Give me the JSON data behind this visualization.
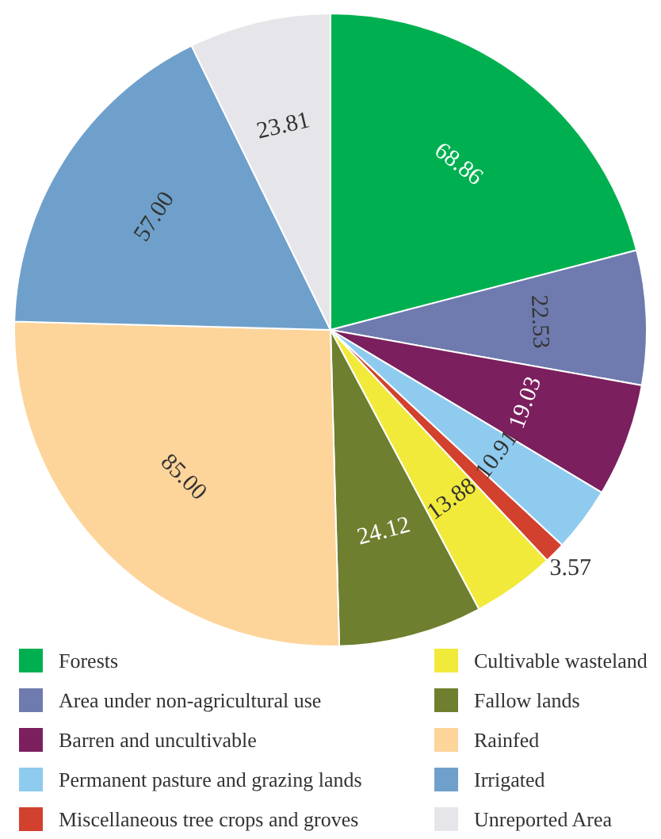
{
  "chart_data": {
    "type": "pie",
    "categories": [
      "Forests",
      "Area under non-agricultural use",
      "Barren and uncultivable",
      "Permanent pasture and grazing lands",
      "Miscellaneous tree crops and groves",
      "Cultivable wasteland",
      "Fallow lands",
      "Rainfed",
      "Irrigated",
      "Unreported Area"
    ],
    "values": [
      68.86,
      22.53,
      19.03,
      10.91,
      3.57,
      13.88,
      24.12,
      85.0,
      57.0,
      23.81
    ],
    "colors": [
      "#00b050",
      "#6f7bae",
      "#7b1f5e",
      "#8ecbef",
      "#d2412e",
      "#f2ea3b",
      "#6e7f2f",
      "#fdd49a",
      "#6fa0cb",
      "#e6e6ea"
    ],
    "value_labels": [
      "68.86",
      "22.53",
      "19.03",
      "10.91",
      "3.57",
      "13.88",
      "24.12",
      "85.00",
      "57.00",
      "23.81"
    ],
    "legend": "bottom"
  }
}
